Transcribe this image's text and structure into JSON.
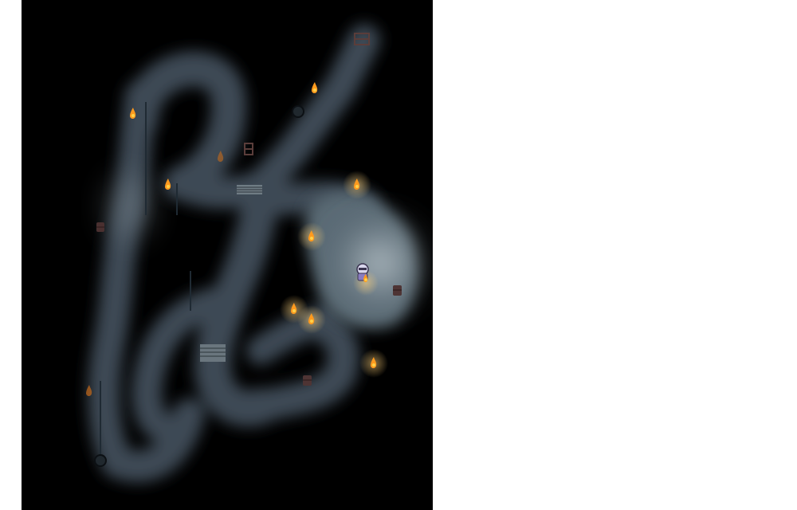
{
  "colors": {
    "void": "#000000",
    "cave_floor": "#3d4a55",
    "cave_floor_light": "#b8c2c8",
    "cave_edge": "#1f2a33",
    "torch_flame": "#ff9a1e",
    "torch_core": "#ffd24a",
    "page_background": "#ffffff"
  },
  "icons": {
    "torch": "torch-icon",
    "player": "player-sprite",
    "ladder": "ladder-icon",
    "stairs": "stairs-icon",
    "pit": "pit-icon",
    "barrel": "barrel-icon"
  }
}
